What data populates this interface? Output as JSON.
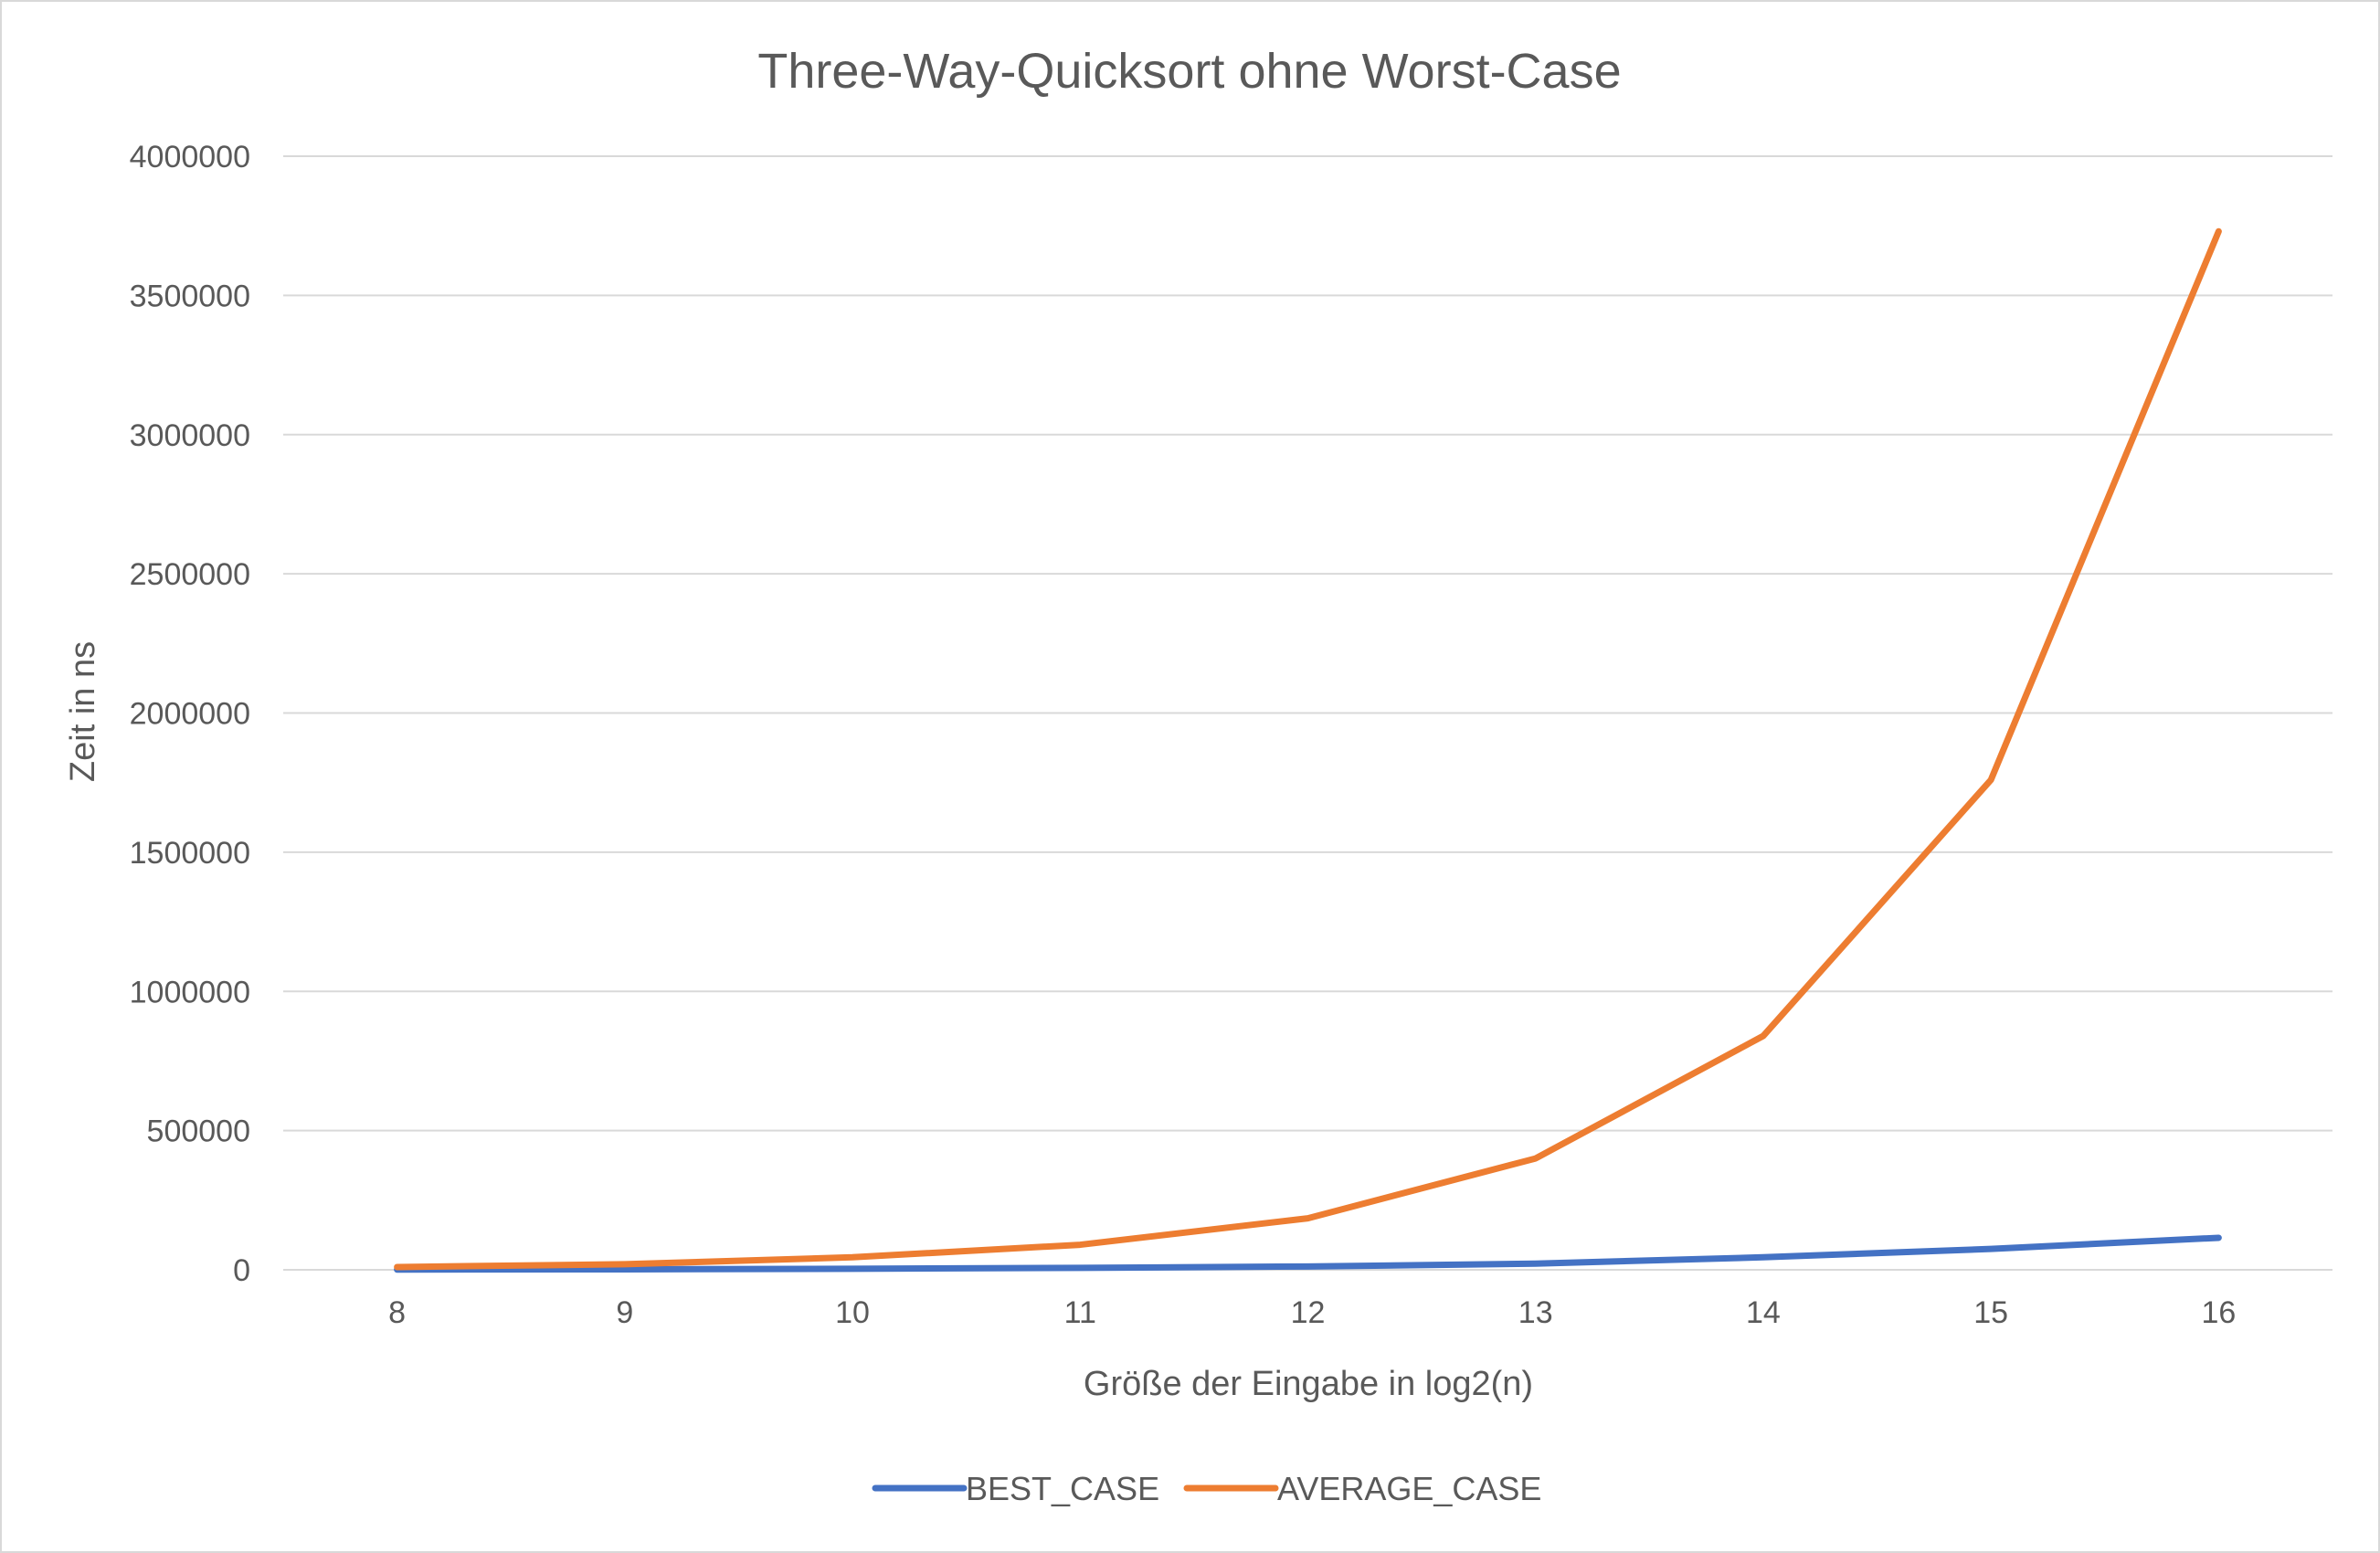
{
  "chart_data": {
    "type": "line",
    "title": "Three-Way-Quicksort ohne Worst-Case",
    "xlabel": "Größe der Eingabe in log2(n)",
    "ylabel": "Zeit in ns",
    "categories": [
      "8",
      "9",
      "10",
      "11",
      "12",
      "13",
      "14",
      "15",
      "16"
    ],
    "ylim": [
      0,
      4000000
    ],
    "yticks": [
      "0",
      "500000",
      "1000000",
      "1500000",
      "2000000",
      "2500000",
      "3000000",
      "3500000",
      "4000000"
    ],
    "grid": true,
    "legend_position": "bottom",
    "series": [
      {
        "name": "BEST_CASE",
        "color": "#4472C4",
        "values": [
          900,
          1800,
          3600,
          7000,
          12000,
          22000,
          45000,
          75000,
          115000
        ]
      },
      {
        "name": "AVERAGE_CASE",
        "color": "#ED7D31",
        "values": [
          10000,
          20000,
          45000,
          90000,
          185000,
          400000,
          840000,
          1760000,
          3730000
        ]
      }
    ]
  }
}
